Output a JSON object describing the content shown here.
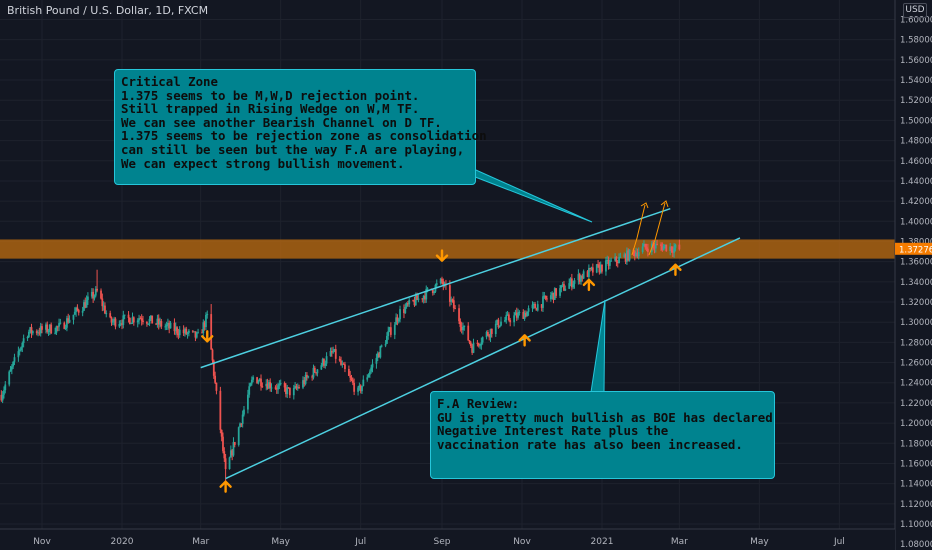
{
  "header": {
    "symbol_title": "British Pound / U.S. Dollar, 1D, FXCM",
    "currency": "USD"
  },
  "price_axis": {
    "ticks": [
      "1.60000",
      "1.58000",
      "1.56000",
      "1.54000",
      "1.52000",
      "1.50000",
      "1.48000",
      "1.46000",
      "1.44000",
      "1.42000",
      "1.40000",
      "1.38000",
      "1.36000",
      "1.34000",
      "1.32000",
      "1.30000",
      "1.28000",
      "1.26000",
      "1.24000",
      "1.22000",
      "1.20000",
      "1.18000",
      "1.16000",
      "1.14000",
      "1.12000",
      "1.10000",
      "1.08000"
    ],
    "last_price": "1.37276",
    "last_price_color": "#f57c00"
  },
  "time_axis": {
    "ticks": [
      "Nov",
      "2020",
      "Mar",
      "May",
      "Jul",
      "Sep",
      "Nov",
      "2021",
      "Mar",
      "May",
      "Jul"
    ]
  },
  "annotations": {
    "critical_zone": {
      "lines": [
        "Critical Zone",
        "1.375 seems to be M,W,D rejection point.",
        "Still trapped in Rising Wedge on W,M TF.",
        "We can see another Bearish Channel on D TF.",
        "1.375 seems to be rejection zone as consolidation",
        "can still be seen but the way F.A are playing,",
        "We can expect strong bullish movement."
      ]
    },
    "fa_review": {
      "lines": [
        "F.A Review:",
        "GU is pretty much bullish as BOE has declared",
        "Negative Interest Rate plus the",
        "vaccination rate has also been increased."
      ]
    }
  },
  "colors": {
    "background": "#131722",
    "up": "#26a69a",
    "down": "#ef5350",
    "zone": "#b8690f",
    "trendline": "#4dd0e1",
    "arrow": "#ff9800",
    "callout_bg": "#00838f",
    "callout_border": "#26c6da"
  },
  "chart_data": {
    "type": "candlestick",
    "symbol": "British Pound / U.S. Dollar, 1D, FXCM",
    "ylim": [
      1.07,
      1.61
    ],
    "x_ticks": [
      "Nov",
      "2020",
      "Mar",
      "May",
      "Jul",
      "Sep",
      "Nov",
      "2021",
      "Mar",
      "May",
      "Jul"
    ],
    "zone": {
      "low": 1.363,
      "high": 1.382
    },
    "wedge_upper": [
      [
        "2020-03-01",
        1.255
      ],
      [
        "2021-02-05",
        1.405
      ]
    ],
    "wedge_lower": [
      [
        "2020-03-20",
        1.145
      ],
      [
        "2021-03-25",
        1.37
      ]
    ],
    "support_arrows": [
      [
        "2020-03-20",
        1.135
      ],
      [
        "2020-11-03",
        1.28
      ],
      [
        "2020-12-22",
        1.335
      ],
      [
        "2021-02-26",
        1.35
      ]
    ],
    "resistance_arrows": [
      [
        "2020-03-06",
        1.285
      ],
      [
        "2020-09-01",
        1.365
      ]
    ],
    "close_path": [
      [
        "2019-10-01",
        1.228
      ],
      [
        "2019-10-20",
        1.29
      ],
      [
        "2019-11-15",
        1.295
      ],
      [
        "2019-12-13",
        1.33
      ],
      [
        "2019-12-23",
        1.3
      ],
      [
        "2020-01-15",
        1.305
      ],
      [
        "2020-02-05",
        1.295
      ],
      [
        "2020-02-28",
        1.285
      ],
      [
        "2020-03-06",
        1.305
      ],
      [
        "2020-03-20",
        1.15
      ],
      [
        "2020-04-10",
        1.245
      ],
      [
        "2020-05-10",
        1.23
      ],
      [
        "2020-06-10",
        1.27
      ],
      [
        "2020-06-29",
        1.23
      ],
      [
        "2020-07-31",
        1.31
      ],
      [
        "2020-09-01",
        1.34
      ],
      [
        "2020-09-24",
        1.275
      ],
      [
        "2020-10-15",
        1.3
      ],
      [
        "2020-11-05",
        1.31
      ],
      [
        "2020-12-15",
        1.345
      ],
      [
        "2021-01-10",
        1.36
      ],
      [
        "2021-02-05",
        1.375
      ],
      [
        "2021-02-20",
        1.375
      ],
      [
        "2021-03-01",
        1.372
      ]
    ]
  }
}
